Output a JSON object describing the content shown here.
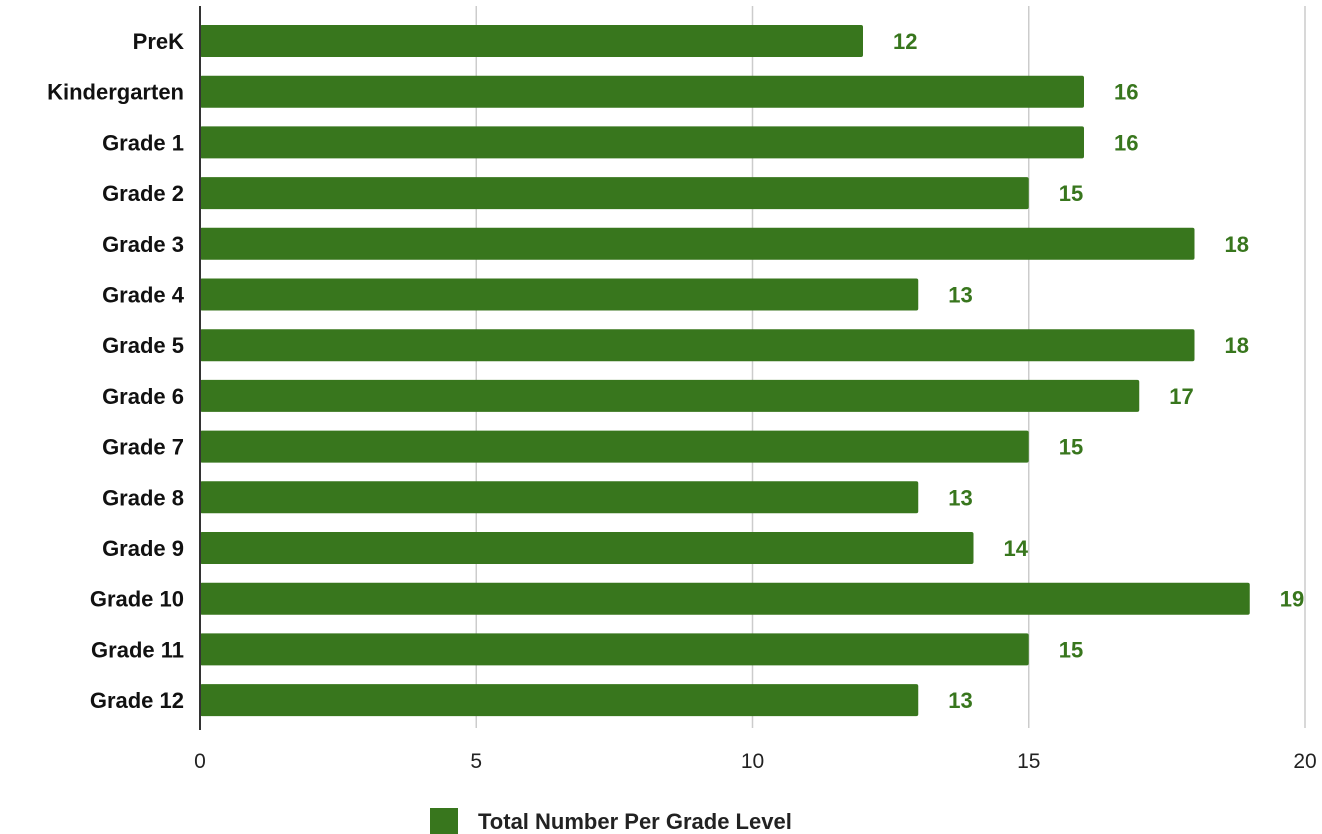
{
  "chart_data": {
    "type": "bar",
    "orientation": "horizontal",
    "categories": [
      "PreK",
      "Kindergarten",
      "Grade 1",
      "Grade 2",
      "Grade 3",
      "Grade 4",
      "Grade 5",
      "Grade 6",
      "Grade 7",
      "Grade 8",
      "Grade 9",
      "Grade 10",
      "Grade 11",
      "Grade 12"
    ],
    "series": [
      {
        "name": "Total Number Per Grade Level",
        "values": [
          12,
          16,
          16,
          15,
          18,
          13,
          18,
          17,
          15,
          13,
          14,
          19,
          15,
          13
        ]
      }
    ],
    "xlim": [
      0,
      20
    ],
    "x_ticks": [
      0,
      5,
      10,
      15,
      20
    ],
    "x_tick_labels": [
      "0",
      "5",
      "10",
      "15",
      "20"
    ],
    "title": "",
    "xlabel": "",
    "ylabel": "",
    "grid": "vertical",
    "legend_position": "bottom",
    "data_labels": true,
    "colors": {
      "bar": "#38761d",
      "data_label": "#38761d",
      "grid": "#cccccc",
      "axis": "#333333"
    }
  }
}
